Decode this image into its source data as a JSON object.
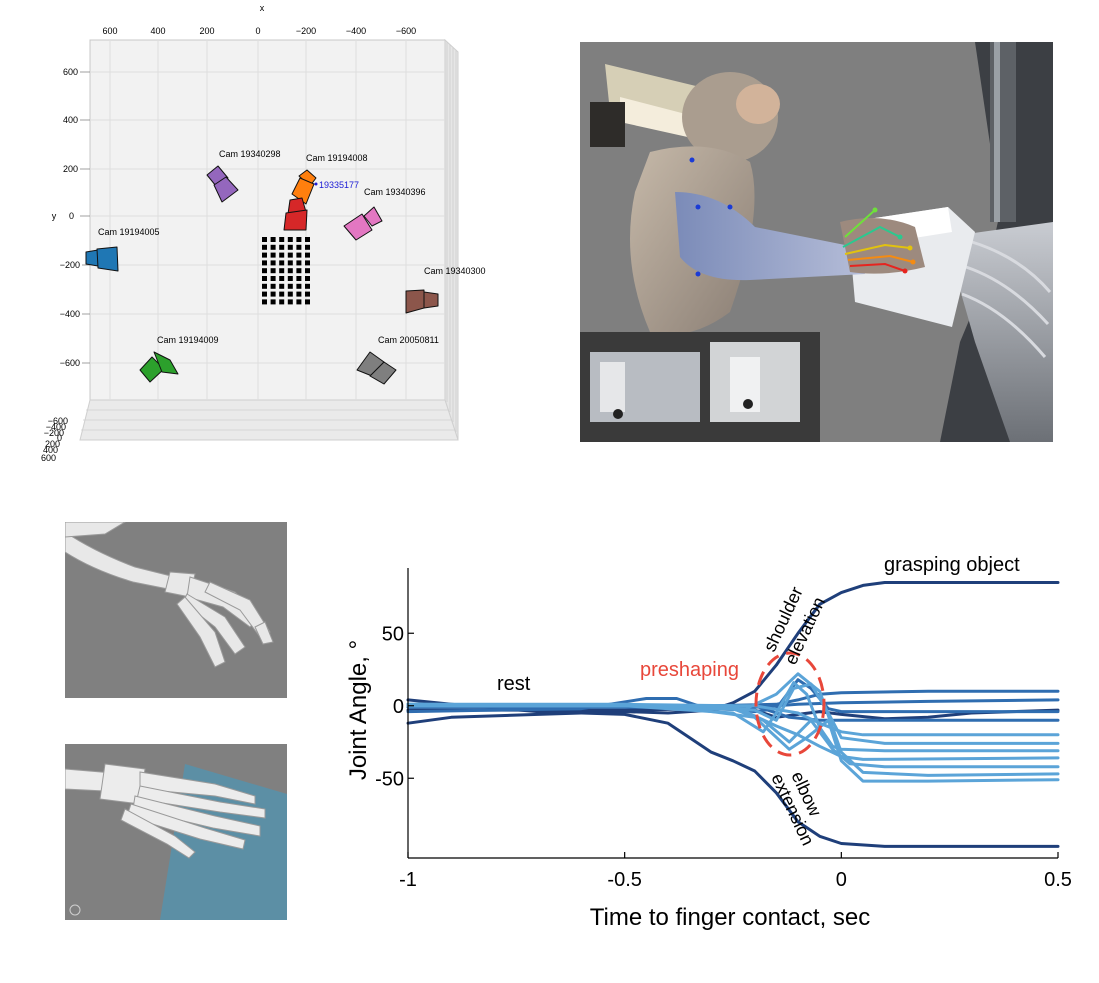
{
  "camera_plot": {
    "x_axis_letter": "x",
    "y_axis_letter": "y",
    "top_ticks": [
      "600",
      "400",
      "200",
      "0",
      "−200",
      "−400",
      "−600"
    ],
    "left_ticks": [
      "600",
      "400",
      "200",
      "0",
      "−200",
      "−400",
      "−600"
    ],
    "depth_ticks": [
      "−600",
      "−400",
      "−200",
      "0",
      "200",
      "400",
      "600"
    ],
    "cameras": [
      {
        "label": "Cam 19340298",
        "color": "#9467bd"
      },
      {
        "label": "Cam 19194008",
        "color": "#ff7f0e"
      },
      {
        "label": "19335177",
        "color": "#d62728"
      },
      {
        "label": "Cam 19340396",
        "color": "#e377c2"
      },
      {
        "label": "Cam 19194005",
        "color": "#1f77b4"
      },
      {
        "label": "Cam 19340300",
        "color": "#8c564b"
      },
      {
        "label": "Cam 19194009",
        "color": "#2ca02c"
      },
      {
        "label": "Cam 20050811",
        "color": "#7f7f7f"
      }
    ]
  },
  "chart_data": {
    "type": "line",
    "xlabel": "Time to finger contact, sec",
    "ylabel": "Joint Angle, °",
    "xlim": [
      -1,
      0.5
    ],
    "ylim": [
      -105,
      95
    ],
    "x_ticks": [
      -1,
      -0.5,
      0,
      0.5
    ],
    "x_tick_labels": [
      "-1",
      "-0.5",
      "0",
      "0.5"
    ],
    "y_ticks": [
      -50,
      0,
      50
    ],
    "y_tick_labels": [
      "-50",
      "0",
      "50"
    ],
    "annotations": {
      "grasping": "grasping object",
      "rest": "rest",
      "preshaping": "preshaping",
      "shoulder": "shoulder",
      "elevation": "elevation",
      "elbow": "elbow",
      "extension": "extension"
    },
    "colors": {
      "dark": "#1f3f7a",
      "mid": "#2f6db0",
      "light": "#5ba4d8",
      "highlight": "#e8473a"
    },
    "series": [
      {
        "color": "dark",
        "points": [
          [
            -1,
            -12
          ],
          [
            -0.9,
            -8
          ],
          [
            -0.7,
            -6
          ],
          [
            -0.5,
            -4
          ],
          [
            -0.4,
            -5
          ],
          [
            -0.3,
            -3
          ],
          [
            -0.25,
            2
          ],
          [
            -0.2,
            10
          ],
          [
            -0.15,
            28
          ],
          [
            -0.1,
            50
          ],
          [
            -0.05,
            70
          ],
          [
            0,
            78
          ],
          [
            0.05,
            83
          ],
          [
            0.1,
            85
          ],
          [
            0.2,
            85
          ],
          [
            0.5,
            85
          ]
        ]
      },
      {
        "color": "dark",
        "points": [
          [
            -1,
            4
          ],
          [
            -0.9,
            1
          ],
          [
            -0.7,
            -4
          ],
          [
            -0.5,
            -6
          ],
          [
            -0.4,
            -12
          ],
          [
            -0.35,
            -22
          ],
          [
            -0.3,
            -32
          ],
          [
            -0.25,
            -38
          ],
          [
            -0.2,
            -45
          ],
          [
            -0.15,
            -60
          ],
          [
            -0.1,
            -80
          ],
          [
            -0.05,
            -90
          ],
          [
            0,
            -95
          ],
          [
            0.1,
            -97
          ],
          [
            0.5,
            -97
          ]
        ]
      },
      {
        "color": "dark",
        "points": [
          [
            -1,
            -3
          ],
          [
            -0.5,
            -3
          ],
          [
            -0.3,
            -2
          ],
          [
            -0.2,
            -3
          ],
          [
            -0.15,
            -8
          ],
          [
            -0.1,
            -6
          ],
          [
            -0.05,
            -4
          ],
          [
            0,
            -6
          ],
          [
            0.1,
            -9
          ],
          [
            0.2,
            -8
          ],
          [
            0.3,
            -5
          ],
          [
            0.5,
            -3
          ]
        ]
      },
      {
        "color": "mid",
        "points": [
          [
            -1,
            -4
          ],
          [
            -0.8,
            -3
          ],
          [
            -0.6,
            -2
          ],
          [
            -0.45,
            5
          ],
          [
            -0.38,
            5
          ],
          [
            -0.33,
            0
          ],
          [
            -0.2,
            -4
          ],
          [
            -0.15,
            -2
          ],
          [
            -0.1,
            18
          ],
          [
            -0.07,
            12
          ],
          [
            -0.03,
            -2
          ],
          [
            0,
            -4
          ],
          [
            0.5,
            -4
          ]
        ]
      },
      {
        "color": "mid",
        "points": [
          [
            -1,
            0
          ],
          [
            -0.5,
            0
          ],
          [
            -0.3,
            0
          ],
          [
            -0.15,
            1
          ],
          [
            -0.1,
            4
          ],
          [
            -0.05,
            8
          ],
          [
            0,
            9
          ],
          [
            0.2,
            10
          ],
          [
            0.5,
            10
          ]
        ]
      },
      {
        "color": "mid",
        "points": [
          [
            -1,
            -1
          ],
          [
            -0.5,
            -1
          ],
          [
            -0.2,
            -1
          ],
          [
            -0.1,
            1
          ],
          [
            0,
            2
          ],
          [
            0.2,
            3
          ],
          [
            0.5,
            4
          ]
        ]
      },
      {
        "color": "mid",
        "points": [
          [
            -1,
            0
          ],
          [
            -0.5,
            0
          ],
          [
            -0.2,
            0
          ],
          [
            -0.12,
            -8
          ],
          [
            -0.05,
            -10
          ],
          [
            0,
            -10
          ],
          [
            0.5,
            -10
          ]
        ]
      },
      {
        "color": "light",
        "points": [
          [
            -1,
            1
          ],
          [
            -0.5,
            0
          ],
          [
            -0.25,
            -5
          ],
          [
            -0.18,
            -18
          ],
          [
            -0.15,
            -5
          ],
          [
            -0.11,
            16
          ],
          [
            -0.08,
            8
          ],
          [
            -0.05,
            -15
          ],
          [
            -0.02,
            -28
          ],
          [
            0,
            -30
          ],
          [
            0.1,
            -31
          ],
          [
            0.5,
            -31
          ]
        ]
      },
      {
        "color": "light",
        "points": [
          [
            -1,
            0
          ],
          [
            -0.5,
            0
          ],
          [
            -0.2,
            -3
          ],
          [
            -0.15,
            -10
          ],
          [
            -0.11,
            12
          ],
          [
            -0.07,
            15
          ],
          [
            -0.03,
            -5
          ],
          [
            0,
            -22
          ],
          [
            0.1,
            -26
          ],
          [
            0.5,
            -26
          ]
        ]
      },
      {
        "color": "light",
        "points": [
          [
            -1,
            1
          ],
          [
            -0.5,
            0
          ],
          [
            -0.25,
            -2
          ],
          [
            -0.18,
            -10
          ],
          [
            -0.12,
            -25
          ],
          [
            -0.07,
            -10
          ],
          [
            -0.02,
            -30
          ],
          [
            0.02,
            -40
          ],
          [
            0.1,
            -42
          ],
          [
            0.5,
            -42
          ]
        ]
      },
      {
        "color": "light",
        "points": [
          [
            -1,
            0
          ],
          [
            -0.5,
            0
          ],
          [
            -0.22,
            -2
          ],
          [
            -0.15,
            8
          ],
          [
            -0.1,
            22
          ],
          [
            -0.05,
            10
          ],
          [
            0,
            -32
          ],
          [
            0.05,
            -46
          ],
          [
            0.2,
            -48
          ],
          [
            0.5,
            -47
          ]
        ]
      },
      {
        "color": "light",
        "points": [
          [
            -1,
            0
          ],
          [
            -0.4,
            0
          ],
          [
            -0.2,
            -8
          ],
          [
            -0.12,
            -30
          ],
          [
            -0.08,
            -22
          ],
          [
            -0.03,
            -10
          ],
          [
            0,
            -38
          ],
          [
            0.05,
            -52
          ],
          [
            0.2,
            -52
          ],
          [
            0.5,
            -51
          ]
        ]
      },
      {
        "color": "light",
        "points": [
          [
            -1,
            0
          ],
          [
            -0.5,
            0
          ],
          [
            -0.2,
            0
          ],
          [
            -0.1,
            -5
          ],
          [
            -0.05,
            -12
          ],
          [
            0,
            -18
          ],
          [
            0.05,
            -20
          ],
          [
            0.5,
            -20
          ]
        ]
      },
      {
        "color": "light",
        "points": [
          [
            -1,
            1
          ],
          [
            -0.5,
            1
          ],
          [
            -0.25,
            0
          ],
          [
            -0.15,
            -14
          ],
          [
            -0.1,
            -20
          ],
          [
            -0.05,
            -28
          ],
          [
            0,
            -35
          ],
          [
            0.05,
            -37
          ],
          [
            0.5,
            -36
          ]
        ]
      }
    ]
  }
}
